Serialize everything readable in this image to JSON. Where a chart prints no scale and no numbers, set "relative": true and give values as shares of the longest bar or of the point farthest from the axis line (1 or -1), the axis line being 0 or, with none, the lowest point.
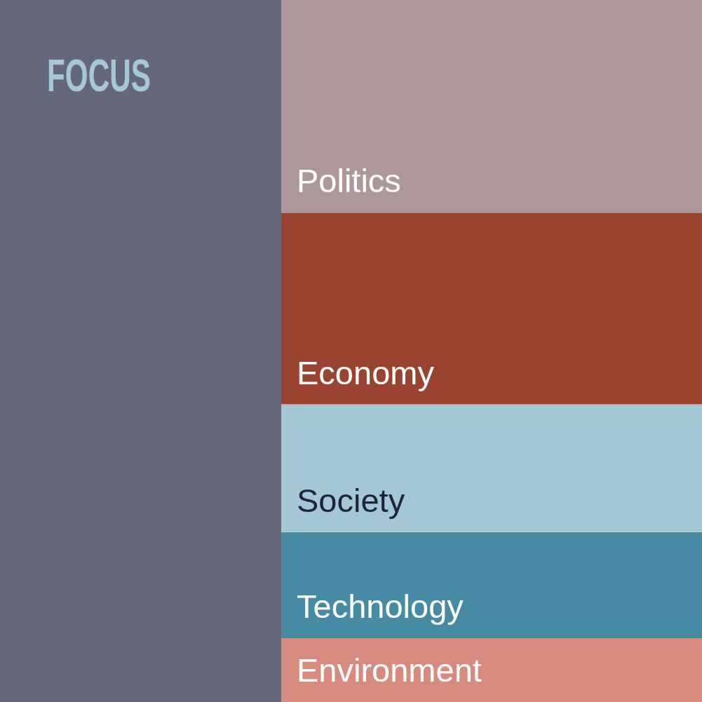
{
  "chart_data": {
    "type": "bar",
    "title": "FOCUS",
    "categories": [
      null
    ],
    "stacked": true,
    "relative": true,
    "legend": false,
    "series": [
      {
        "name": "Environment",
        "color": "#d78b7f",
        "values": [
          0.091
        ]
      },
      {
        "name": "Technology",
        "color": "#478aa3",
        "values": [
          0.151
        ]
      },
      {
        "name": "Society",
        "color": "#a3c8d3",
        "values": [
          0.182
        ]
      },
      {
        "name": "Economy",
        "color": "#9b4331",
        "values": [
          0.273
        ]
      },
      {
        "name": "Politics",
        "color": "#ae979a",
        "values": [
          0.303
        ]
      }
    ]
  }
}
